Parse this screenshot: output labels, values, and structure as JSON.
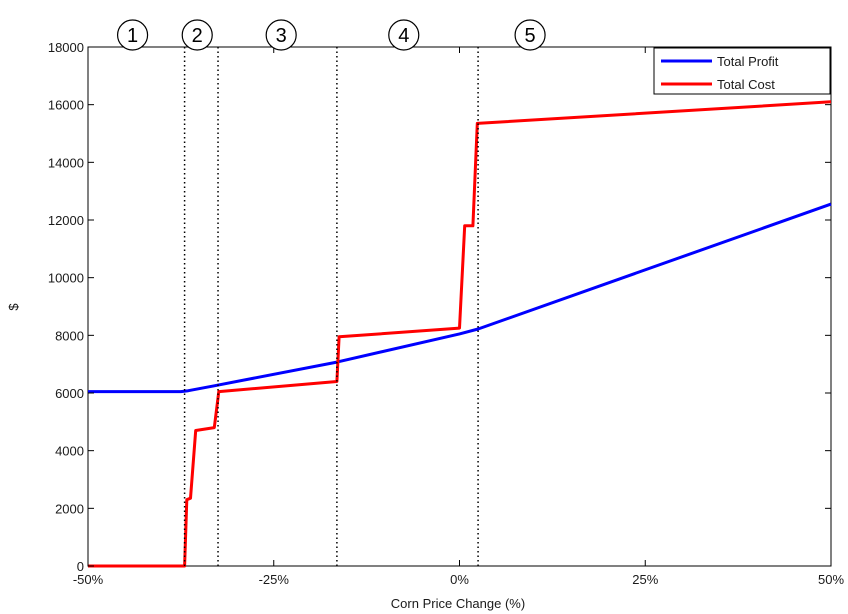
{
  "chart_data": {
    "type": "line",
    "xlabel": "Corn Price Change (%)",
    "ylabel": "$",
    "xlim": [
      -50,
      50
    ],
    "ylim": [
      0,
      18000
    ],
    "x_ticks": [
      -50,
      -25,
      0,
      25,
      50
    ],
    "x_tick_labels": [
      "-50%",
      "-25%",
      "0%",
      "25%",
      "50%"
    ],
    "y_ticks": [
      0,
      2000,
      4000,
      6000,
      8000,
      10000,
      12000,
      14000,
      16000,
      18000
    ],
    "y_tick_labels": [
      "0",
      "2000",
      "4000",
      "6000",
      "8000",
      "10000",
      "12000",
      "14000",
      "16000",
      "18000"
    ],
    "grid": false,
    "legend_position": "top-right",
    "series": [
      {
        "name": "Total Profit",
        "color": "#0000ff",
        "points": [
          [
            -50,
            6050
          ],
          [
            -37.5,
            6050
          ],
          [
            -36.5,
            6080
          ],
          [
            -33,
            6250
          ],
          [
            -16.5,
            7070
          ],
          [
            0,
            8050
          ],
          [
            2.5,
            8220
          ],
          [
            50,
            12550
          ]
        ]
      },
      {
        "name": "Total Cost",
        "color": "#ff0000",
        "points": [
          [
            -50,
            0
          ],
          [
            -37,
            0
          ],
          [
            -36.7,
            2300
          ],
          [
            -36.2,
            2350
          ],
          [
            -35.5,
            4700
          ],
          [
            -33,
            4800
          ],
          [
            -32.4,
            6050
          ],
          [
            -16.5,
            6400
          ],
          [
            -16.2,
            7950
          ],
          [
            0,
            8250
          ],
          [
            0.7,
            11800
          ],
          [
            1.8,
            11800
          ],
          [
            2.4,
            15350
          ],
          [
            50,
            16100
          ]
        ]
      }
    ],
    "vlines": [
      -37,
      -32.5,
      -16.5,
      2.5
    ],
    "regions": [
      {
        "label": "1",
        "x": -44
      },
      {
        "label": "2",
        "x": -35.3
      },
      {
        "label": "3",
        "x": -24
      },
      {
        "label": "4",
        "x": -7.5
      },
      {
        "label": "5",
        "x": 9.5
      }
    ]
  }
}
